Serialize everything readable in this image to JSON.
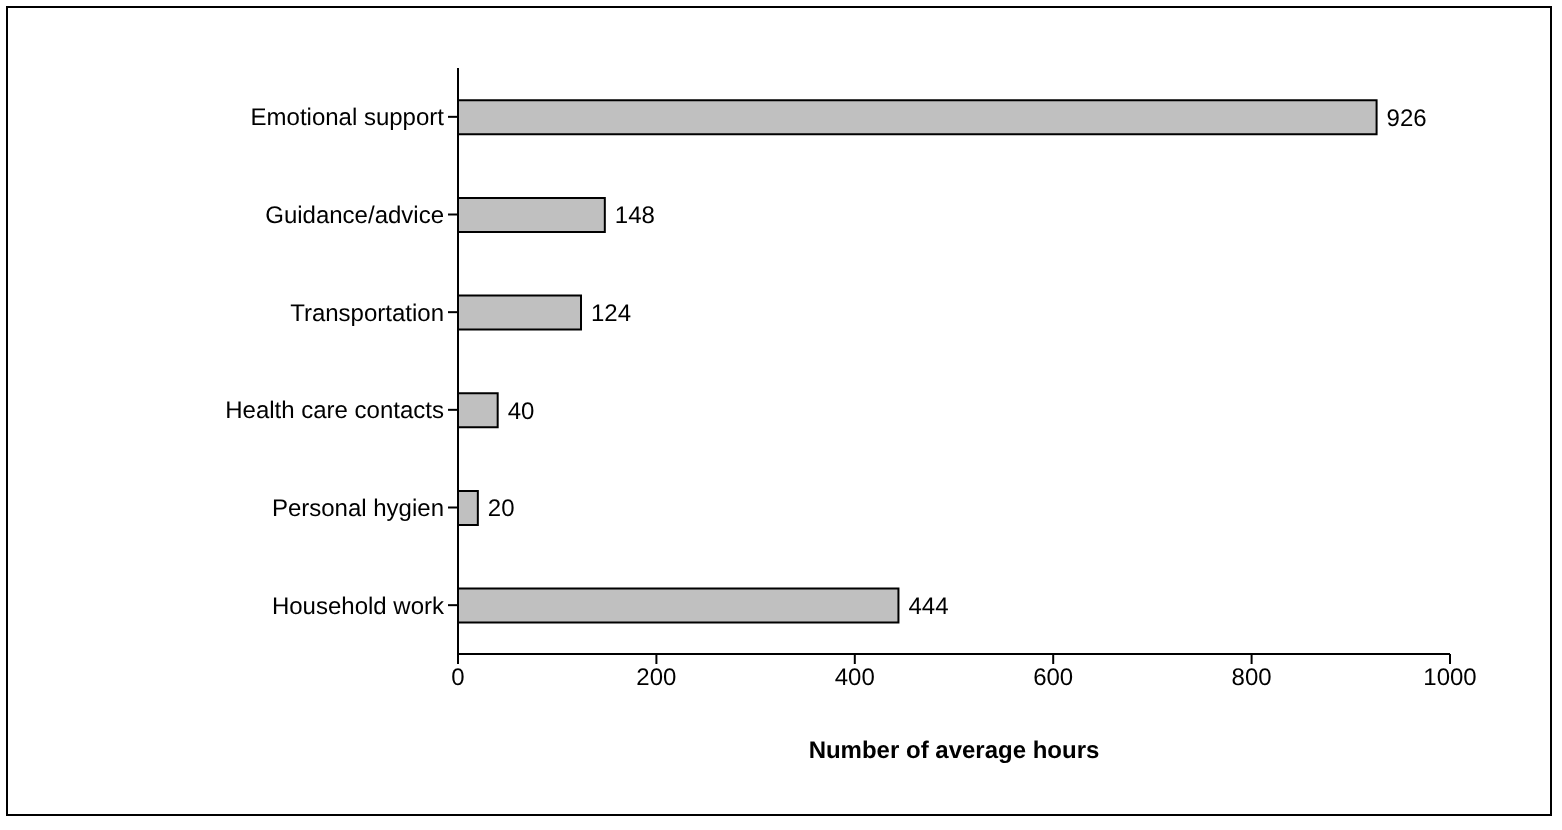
{
  "chart_data": {
    "type": "bar",
    "orientation": "horizontal",
    "xlabel": "Number of average hours",
    "categories": [
      "Emotional support",
      "Guidance/advice",
      "Transportation",
      "Health care contacts",
      "Personal hygien",
      "Household work"
    ],
    "values": [
      926,
      148,
      124,
      40,
      20,
      444
    ],
    "color": "#c0c0c0",
    "xlim": [
      0,
      1000
    ],
    "xticks": [
      0,
      200,
      400,
      600,
      800,
      1000
    ],
    "grid": false,
    "data_labels": true
  }
}
